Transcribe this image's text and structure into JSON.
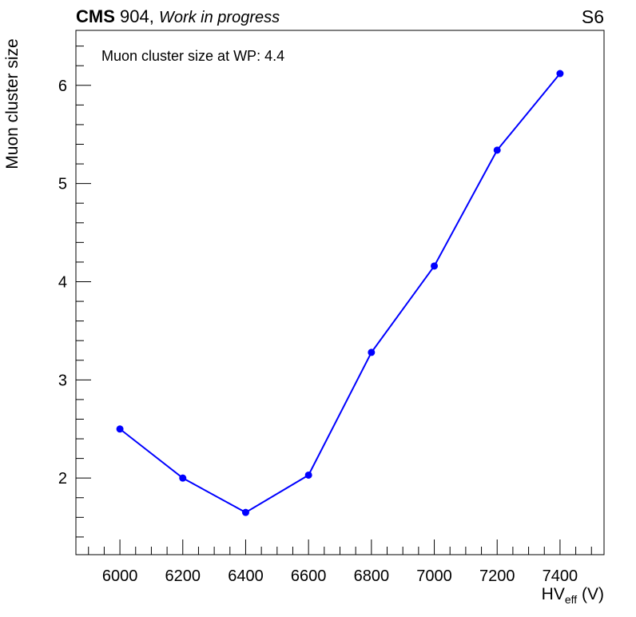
{
  "header": {
    "experiment": "CMS",
    "facility": "904,",
    "status": "Work in progress",
    "panel_label": "S6"
  },
  "annotation": {
    "wp_label": "Muon cluster size at WP:",
    "wp_value": "4.4"
  },
  "axes": {
    "x_title_main": "HV",
    "x_title_sub": "eff",
    "x_title_unit": " (V)",
    "y_title": "Muon cluster size"
  },
  "colors": {
    "series": "#0000ff",
    "axis": "#000000"
  },
  "chart_data": {
    "type": "line",
    "x": [
      6000,
      6200,
      6400,
      6600,
      6800,
      7000,
      7200,
      7400
    ],
    "series": [
      {
        "values": [
          2.5,
          2.0,
          1.65,
          2.03,
          3.28,
          4.16,
          5.34,
          6.12
        ]
      }
    ],
    "xlim": [
      5860,
      7540
    ],
    "ylim": [
      1.22,
      6.56
    ],
    "xticks": [
      6000,
      6200,
      6400,
      6600,
      6800,
      7000,
      7200,
      7400
    ],
    "yticks": [
      2,
      3,
      4,
      5,
      6
    ],
    "grid": false
  }
}
